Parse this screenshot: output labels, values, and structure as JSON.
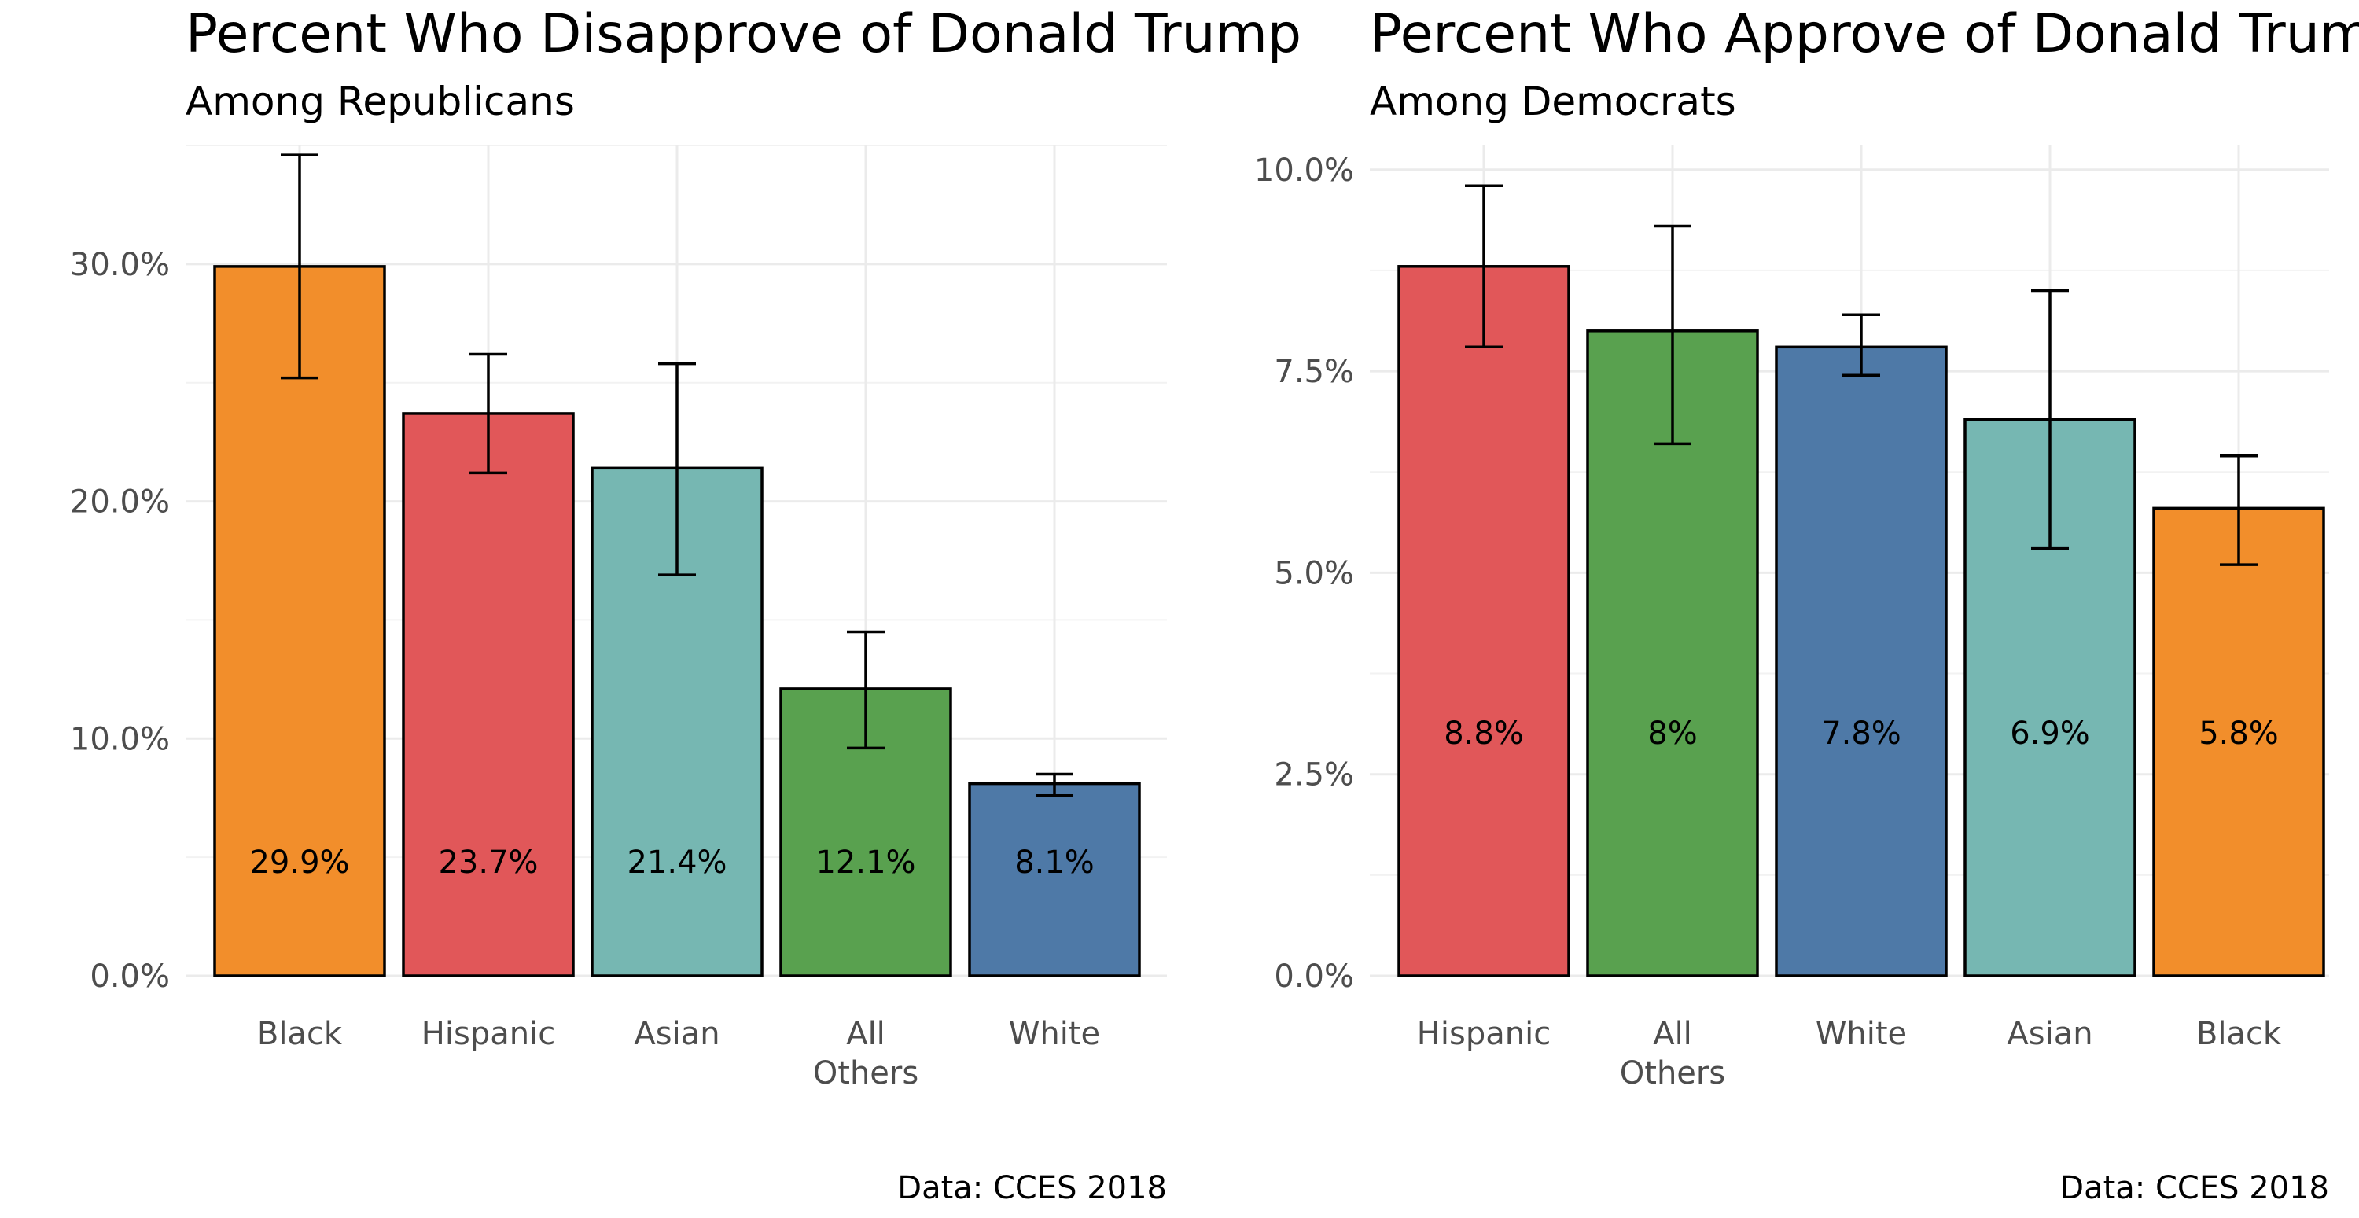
{
  "chart_data": [
    {
      "type": "bar",
      "title": "Percent Who Disapprove of Donald Trump",
      "subtitle": "Among Republicans",
      "caption": "Data: CCES 2018",
      "xlabel": "",
      "ylabel": "",
      "ylim": [
        0,
        35
      ],
      "y_ticks": [
        0,
        10,
        20,
        30
      ],
      "y_tick_labels": [
        "0.0%",
        "10.0%",
        "20.0%",
        "30.0%"
      ],
      "grid": true,
      "categories": [
        "Black",
        "Hispanic",
        "Asian",
        "All Others",
        "White"
      ],
      "category_lines": [
        [
          "Black"
        ],
        [
          "Hispanic"
        ],
        [
          "Asian"
        ],
        [
          "All",
          "Others"
        ],
        [
          "White"
        ]
      ],
      "values": [
        29.9,
        23.7,
        21.4,
        12.1,
        8.1
      ],
      "error_low": [
        25.2,
        21.2,
        16.9,
        9.6,
        7.6
      ],
      "error_high": [
        34.6,
        26.2,
        25.8,
        14.5,
        8.5
      ],
      "data_labels": [
        "29.9%",
        "23.7%",
        "21.4%",
        "12.1%",
        "8.1%"
      ],
      "colors": [
        "#F28E2B",
        "#E15759",
        "#76B7B2",
        "#59A14F",
        "#4E79A7"
      ]
    },
    {
      "type": "bar",
      "title": "Percent Who Approve of Donald Trump",
      "subtitle": "Among Democrats",
      "caption": "Data: CCES 2018",
      "xlabel": "",
      "ylabel": "",
      "ylim": [
        0,
        10.3
      ],
      "y_ticks": [
        0,
        2.5,
        5,
        7.5,
        10
      ],
      "y_tick_labels": [
        "0.0%",
        "2.5%",
        "5.0%",
        "7.5%",
        "10.0%"
      ],
      "grid": true,
      "categories": [
        "Hispanic",
        "All Others",
        "White",
        "Asian",
        "Black"
      ],
      "category_lines": [
        [
          "Hispanic"
        ],
        [
          "All",
          "Others"
        ],
        [
          "White"
        ],
        [
          "Asian"
        ],
        [
          "Black"
        ]
      ],
      "values": [
        8.8,
        8.0,
        7.8,
        6.9,
        5.8
      ],
      "error_low": [
        7.8,
        6.6,
        7.45,
        5.3,
        5.1
      ],
      "error_high": [
        9.8,
        9.3,
        8.2,
        8.5,
        6.45
      ],
      "data_labels": [
        "8.8%",
        "8%",
        "7.8%",
        "6.9%",
        "5.8%"
      ],
      "colors": [
        "#E15759",
        "#59A14F",
        "#4E79A7",
        "#76B7B2",
        "#F28E2B"
      ]
    }
  ]
}
